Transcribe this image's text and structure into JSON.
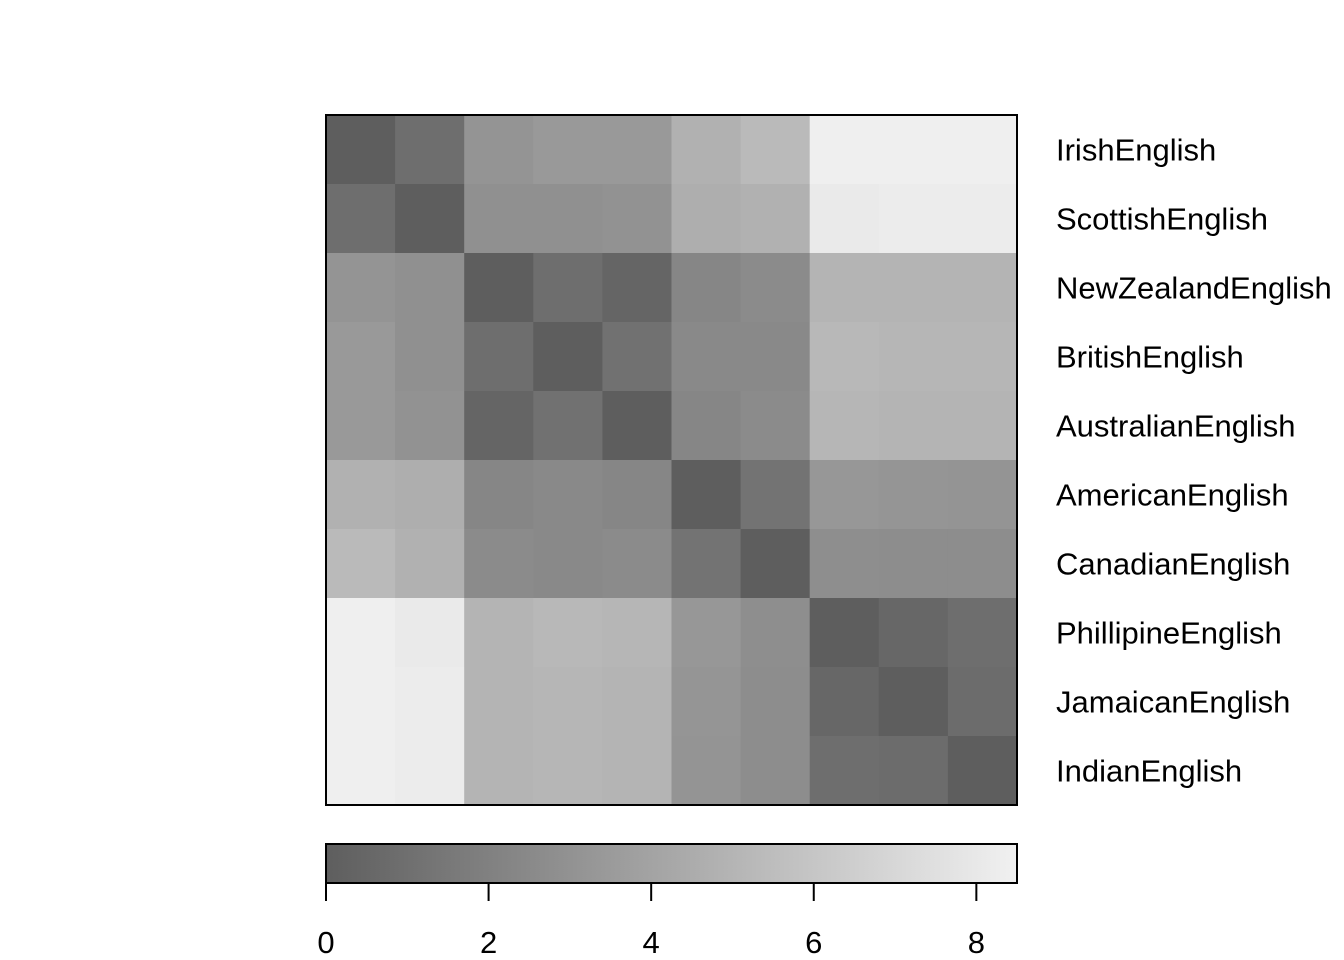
{
  "chart_data": {
    "type": "heatmap",
    "title": "",
    "xlabel": "",
    "ylabel": "",
    "row_labels": [
      "IrishEnglish",
      "ScottishEnglish",
      "NewZealandEnglish",
      "BritishEnglish",
      "AustralianEnglish",
      "AmericanEnglish",
      "CanadianEnglish",
      "PhillipineEnglish",
      "JamaicanEnglish",
      "IndianEnglish"
    ],
    "values": [
      [
        0.0,
        0.9,
        3.1,
        3.4,
        3.4,
        4.8,
        5.3,
        8.4,
        8.4,
        8.4
      ],
      [
        0.9,
        0.0,
        2.9,
        2.9,
        3.0,
        4.6,
        4.8,
        8.1,
        8.2,
        8.2
      ],
      [
        3.1,
        2.9,
        0.0,
        0.9,
        0.4,
        2.3,
        2.6,
        5.0,
        5.0,
        5.0
      ],
      [
        3.4,
        2.9,
        0.9,
        0.0,
        1.1,
        2.5,
        2.5,
        5.2,
        5.1,
        5.1
      ],
      [
        3.4,
        3.0,
        0.4,
        1.1,
        0.0,
        2.3,
        2.6,
        5.1,
        5.0,
        5.0
      ],
      [
        4.8,
        4.6,
        2.3,
        2.5,
        2.3,
        0.0,
        1.2,
        3.3,
        3.2,
        3.1
      ],
      [
        5.3,
        4.8,
        2.6,
        2.5,
        2.6,
        1.2,
        0.0,
        2.8,
        2.7,
        2.7
      ],
      [
        8.4,
        8.1,
        5.0,
        5.2,
        5.1,
        3.3,
        2.8,
        0.0,
        0.5,
        0.9
      ],
      [
        8.4,
        8.2,
        5.0,
        5.1,
        5.0,
        3.2,
        2.7,
        0.5,
        0.0,
        0.8
      ],
      [
        8.4,
        8.2,
        5.0,
        5.1,
        5.0,
        3.1,
        2.7,
        0.9,
        0.8,
        0.0
      ]
    ],
    "color_scale": {
      "min": 0,
      "max": 8.5,
      "low_color": "#5e5e5e",
      "high_color": "#f1f1f1",
      "ticks": [
        0,
        2,
        4,
        6,
        8
      ],
      "tick_labels": [
        "0",
        "2",
        "4",
        "6",
        "8"
      ]
    },
    "legend_placement": "bottom",
    "grid": false
  }
}
